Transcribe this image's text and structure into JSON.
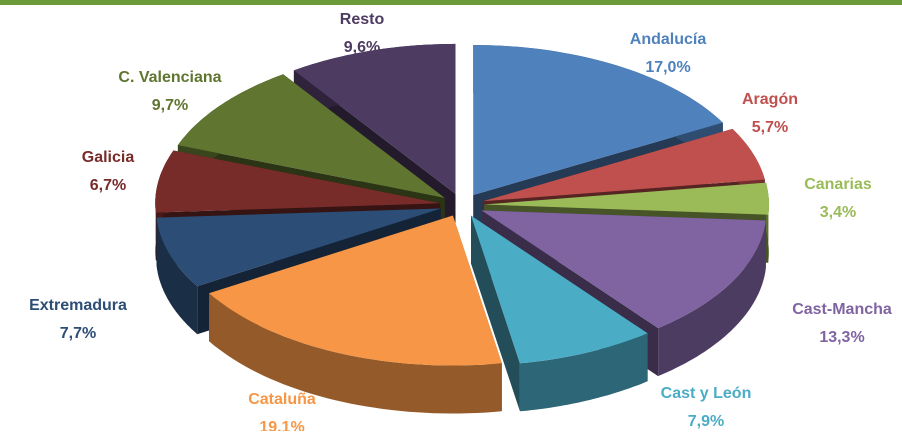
{
  "chart_data": {
    "type": "pie",
    "categories": [
      "Andalucía",
      "Aragón",
      "Canarias",
      "Cast-Mancha",
      "Cast y León",
      "Cataluña",
      "Extremadura",
      "Galicia",
      "C. Valenciana",
      "Resto"
    ],
    "values": [
      17.0,
      5.7,
      3.4,
      13.3,
      7.9,
      19.1,
      7.7,
      6.7,
      9.7,
      9.6
    ],
    "value_labels": [
      "17,0%",
      "5,7%",
      "3,4%",
      "13,3%",
      "7,9%",
      "19,1%",
      "7,7%",
      "6,7%",
      "9,7%",
      "9,6%"
    ],
    "colors": [
      "#4f81bd",
      "#c0504d",
      "#9bbb59",
      "#8064a2",
      "#4bacc6",
      "#f79646",
      "#2c4d75",
      "#772c2a",
      "#5f7530",
      "#4d3b62"
    ]
  }
}
